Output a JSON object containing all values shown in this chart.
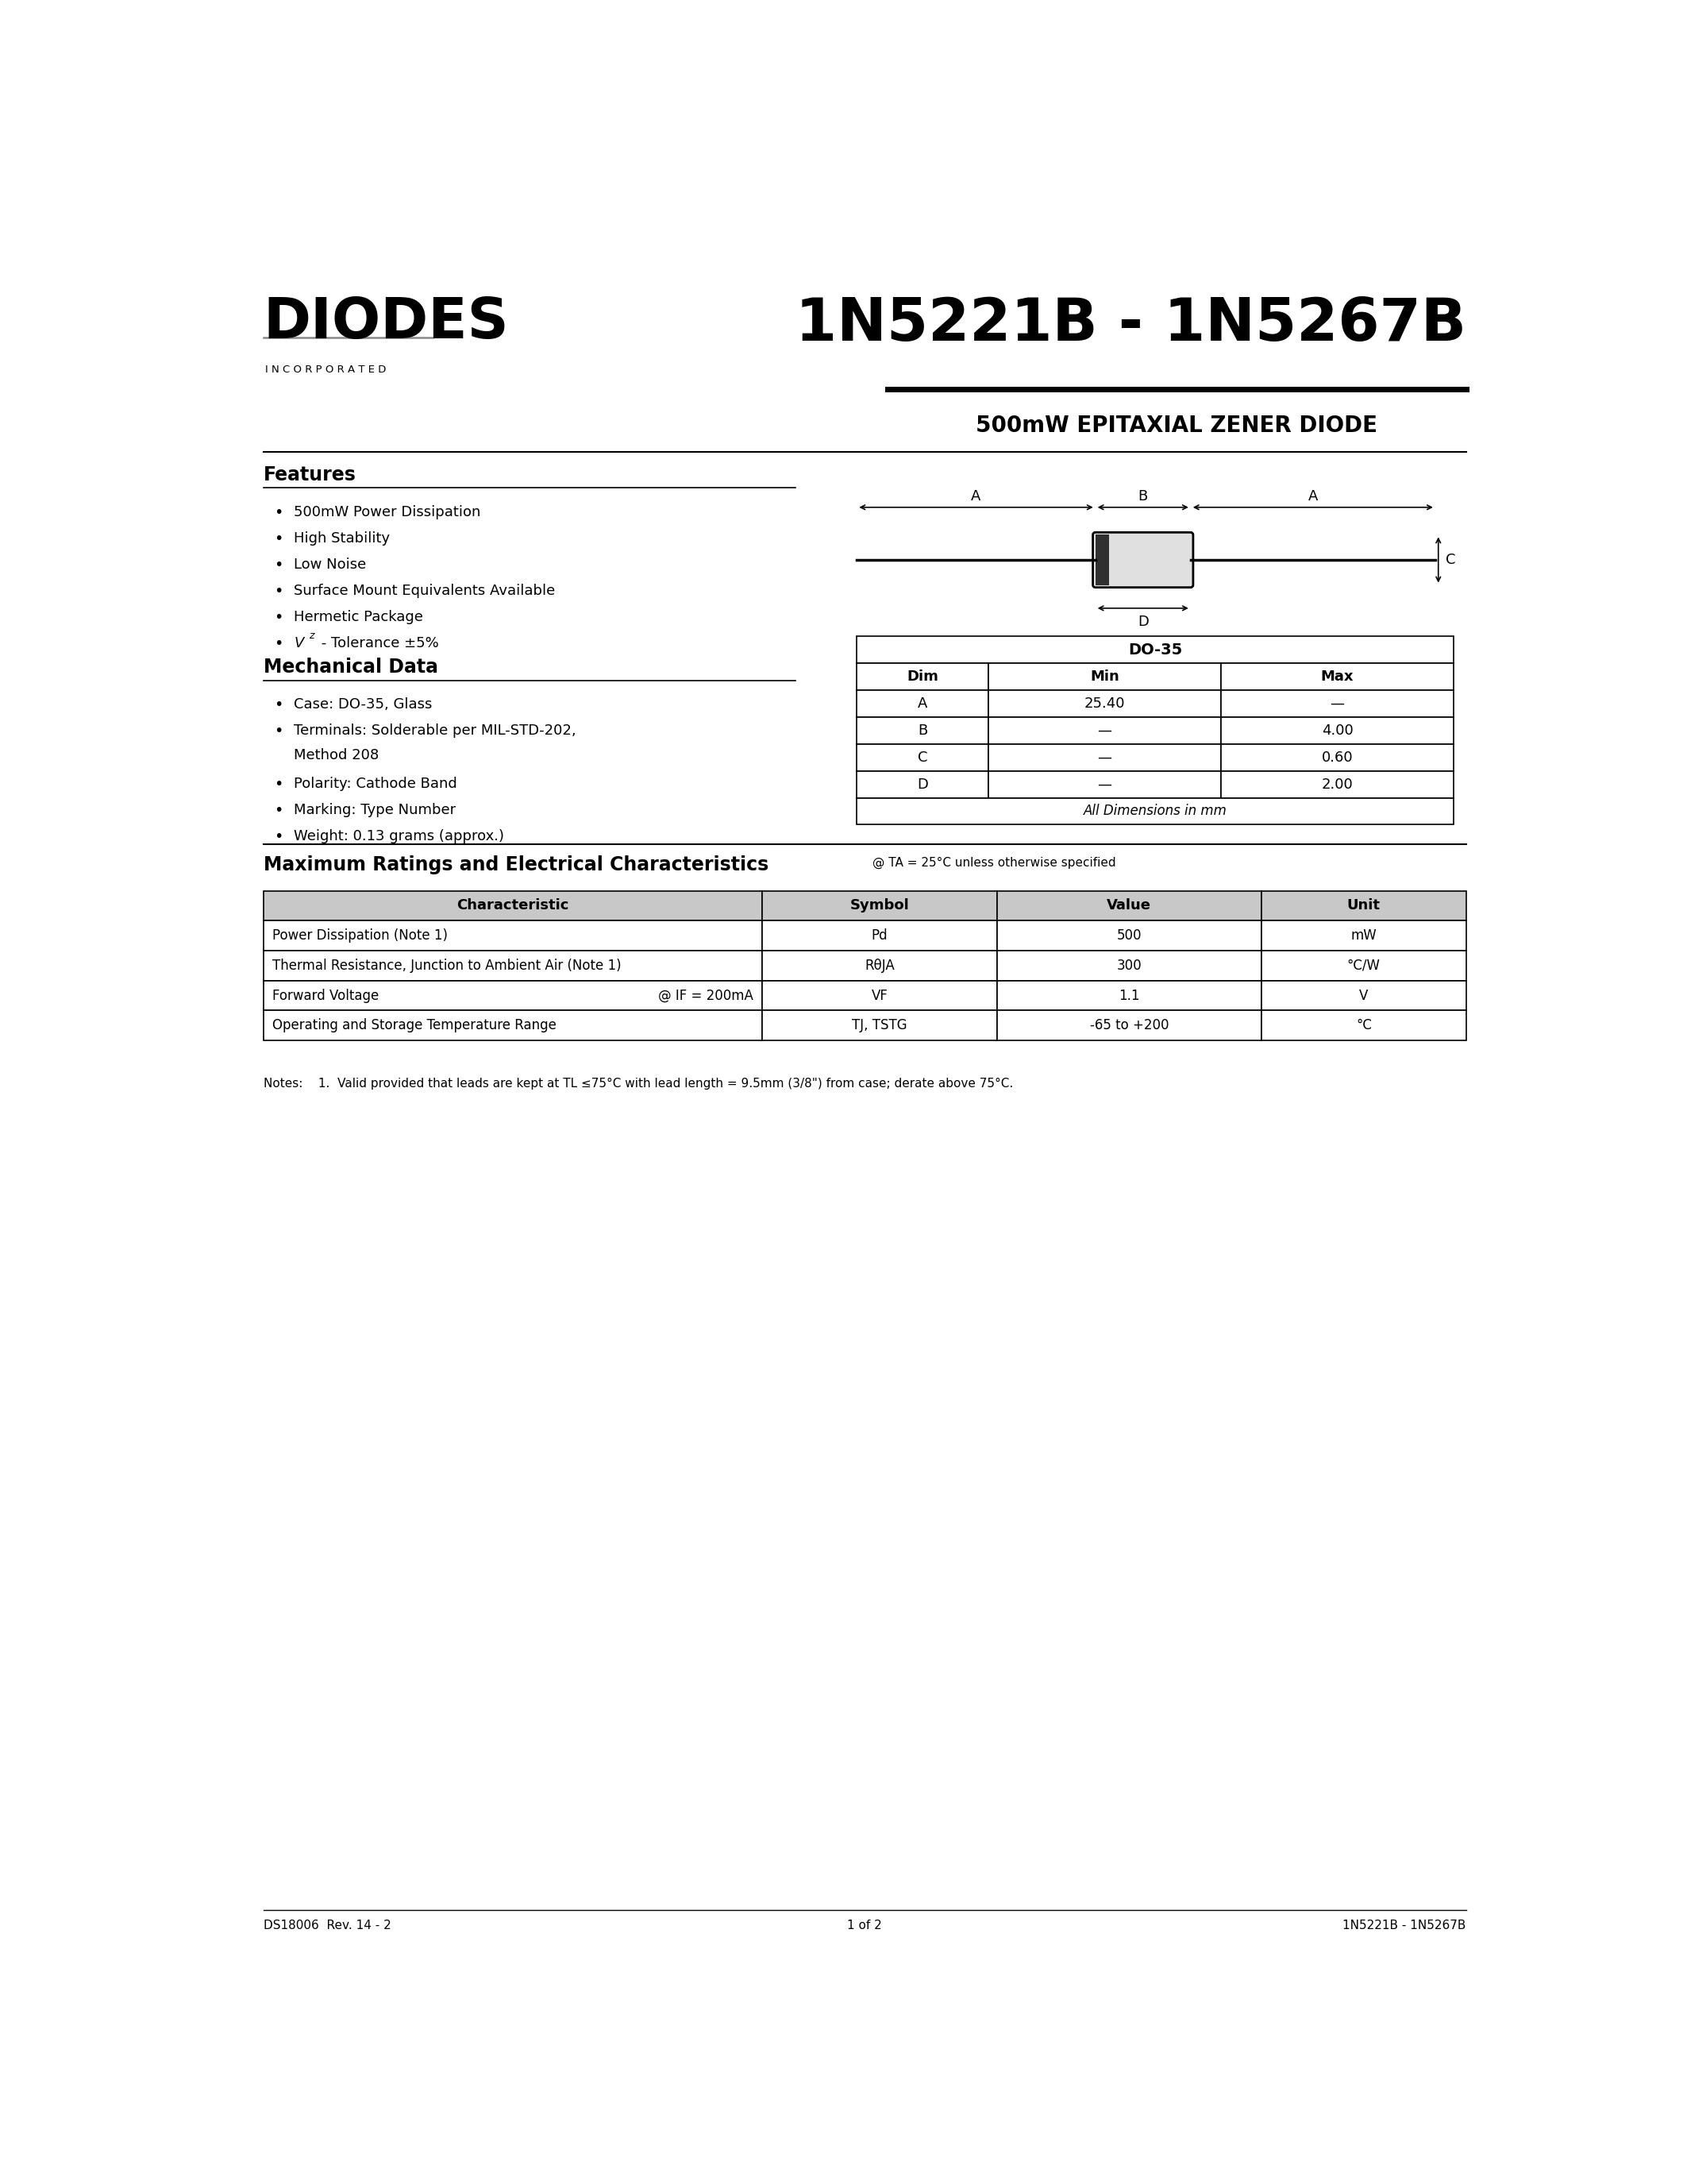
{
  "title": "1N5221B - 1N5267B",
  "subtitle": "500mW EPITAXIAL ZENER DIODE",
  "logo_text": "DIODES",
  "logo_sub": "I N C O R P O R A T E D",
  "features_title": "Features",
  "features": [
    "500mW Power Dissipation",
    "High Stability",
    "Low Noise",
    "Surface Mount Equivalents Available",
    "Hermetic Package",
    "Vz - Tolerance ±5%"
  ],
  "mech_title": "Mechanical Data",
  "mech": [
    "Case: DO-35, Glass",
    "Terminals: Solderable per MIL-STD-202,\nMethod 208",
    "Polarity: Cathode Band",
    "Marking: Type Number",
    "Weight: 0.13 grams (approx.)"
  ],
  "do35_title": "DO-35",
  "do35_cols": [
    "Dim",
    "Min",
    "Max"
  ],
  "do35_rows": [
    [
      "A",
      "25.40",
      "—"
    ],
    [
      "B",
      "—",
      "4.00"
    ],
    [
      "C",
      "—",
      "0.60"
    ],
    [
      "D",
      "—",
      "2.00"
    ]
  ],
  "do35_footer": "All Dimensions in mm",
  "maxrat_title": "Maximum Ratings and Electrical Characteristics",
  "maxrat_note": "@ TA = 25°C unless otherwise specified",
  "table_cols": [
    "Characteristic",
    "Symbol",
    "Value",
    "Unit"
  ],
  "table_rows": [
    [
      "Power Dissipation (Note 1)",
      "Pd",
      "500",
      "mW"
    ],
    [
      "Thermal Resistance, Junction to Ambient Air (Note 1)",
      "RθJA",
      "300",
      "°C/W"
    ],
    [
      "Forward Voltage",
      "@ IF = 200mA",
      "VF",
      "1.1",
      "V"
    ],
    [
      "Operating and Storage Temperature Range",
      "TJ, TSTG",
      "-65 to +200",
      "°C"
    ]
  ],
  "notes_text": "Notes:    1.  Valid provided that leads are kept at TL ≤75°C with lead length = 9.5mm (3/8\") from case; derate above 75°C.",
  "footer_left": "DS18006  Rev. 14 - 2",
  "footer_center": "1 of 2",
  "footer_right": "1N5221B - 1N5267B",
  "bg_color": "#ffffff",
  "text_color": "#000000",
  "table_header_bg": "#c8c8c8",
  "table_border_color": "#000000"
}
